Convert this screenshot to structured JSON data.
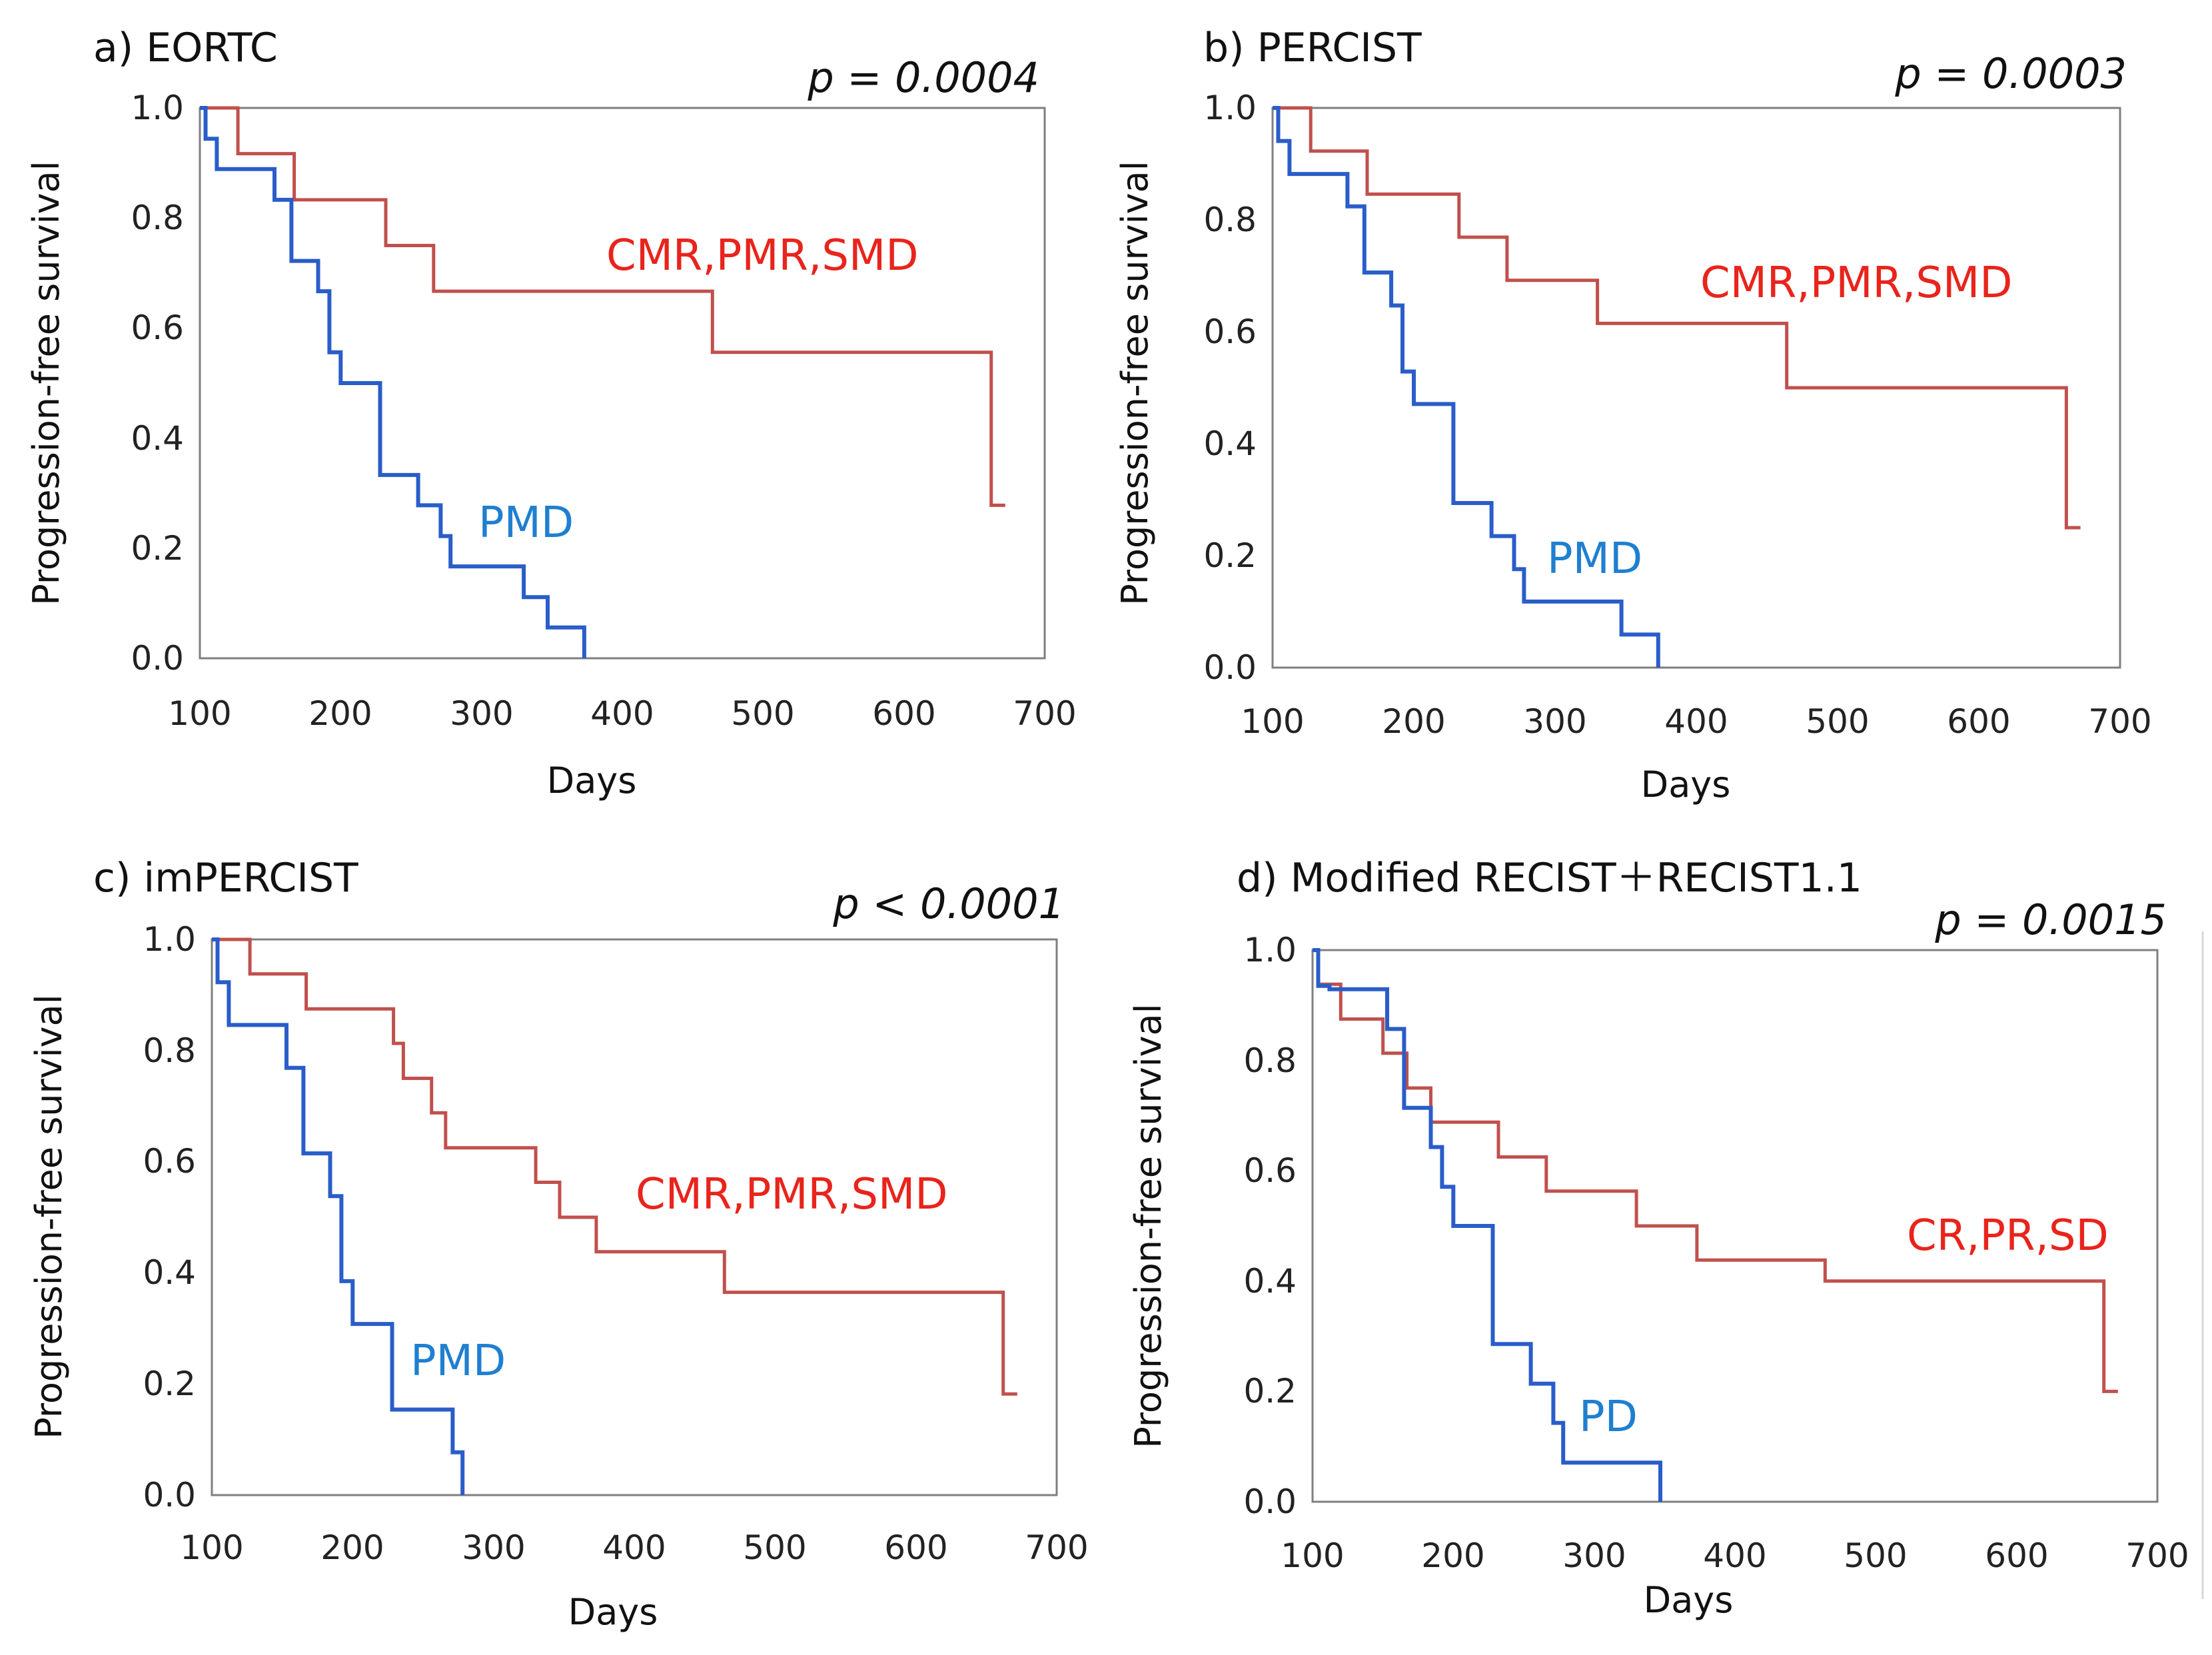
{
  "colors": {
    "red": "#c0504d",
    "blue": "#2a5dc9",
    "red_label": "#e8241c",
    "blue_label": "#1f7fd0",
    "frame": "#7f7f7f"
  },
  "axis_labels": {
    "y": "Progression-free  survival",
    "x": "Days"
  },
  "chart_data": [
    {
      "type": "line",
      "step": "post",
      "panel": "a) EORTC",
      "pvalue": "p = 0.0004",
      "xlabel": "Days",
      "ylabel": "Progression-free  survival",
      "xlim": [
        100,
        700
      ],
      "ylim": [
        0,
        1
      ],
      "xticks": [
        100,
        200,
        300,
        400,
        500,
        600,
        700
      ],
      "xtick_labels": [
        "100",
        "200",
        "300",
        "400",
        "500",
        "600",
        "700"
      ],
      "yticks": [
        0,
        0.2,
        0.4,
        0.6,
        0.8,
        1.0
      ],
      "ytick_labels": [
        "0.0",
        "0.2",
        "0.4",
        "0.6",
        "0.8",
        "1.0"
      ],
      "series": [
        {
          "name": "CMR,PMR,SMD",
          "color": "#c0504d",
          "x": [
            100,
            127,
            167,
            232,
            266,
            464,
            662,
            672
          ],
          "y": [
            1.0,
            0.917,
            0.833,
            0.75,
            0.667,
            0.556,
            0.278,
            0.278
          ]
        },
        {
          "name": "PMD",
          "color": "#2a5dc9",
          "x": [
            100,
            104,
            112,
            153,
            165,
            184,
            192,
            200,
            228,
            255,
            271,
            278,
            330,
            347,
            373
          ],
          "y": [
            1.0,
            0.944,
            0.889,
            0.833,
            0.722,
            0.667,
            0.556,
            0.5,
            0.333,
            0.278,
            0.222,
            0.167,
            0.111,
            0.056,
            0.0
          ]
        }
      ],
      "series_labels": [
        "CMR,PMR,SMD",
        "PMD"
      ]
    },
    {
      "type": "line",
      "step": "post",
      "panel": "b) PERCIST",
      "pvalue": "p = 0.0003",
      "xlabel": "Days",
      "ylabel": "Progression-free  survival",
      "xlim": [
        100,
        700
      ],
      "ylim": [
        0,
        1
      ],
      "xticks": [
        100,
        200,
        300,
        400,
        500,
        600,
        700
      ],
      "xtick_labels": [
        "100",
        "200",
        "300",
        "400",
        "500",
        "600",
        "700"
      ],
      "yticks": [
        0,
        0.2,
        0.4,
        0.6,
        0.8,
        1.0
      ],
      "ytick_labels": [
        "0.0",
        "0.2",
        "0.4",
        "0.6",
        "0.8",
        "1.0"
      ],
      "series": [
        {
          "name": "CMR,PMR,SMD",
          "color": "#c0504d",
          "x": [
            100,
            127,
            167,
            232,
            266,
            330,
            464,
            662,
            672
          ],
          "y": [
            1.0,
            0.923,
            0.846,
            0.769,
            0.692,
            0.615,
            0.5,
            0.25,
            0.25
          ]
        },
        {
          "name": "PMD",
          "color": "#2a5dc9",
          "x": [
            100,
            104,
            112,
            153,
            165,
            184,
            192,
            200,
            228,
            255,
            271,
            278,
            347,
            373
          ],
          "y": [
            1.0,
            0.941,
            0.882,
            0.824,
            0.706,
            0.647,
            0.529,
            0.471,
            0.294,
            0.235,
            0.176,
            0.118,
            0.059,
            0.0
          ]
        }
      ],
      "series_labels": [
        "CMR,PMR,SMD",
        "PMD"
      ]
    },
    {
      "type": "line",
      "step": "post",
      "panel": "c) imPERCIST",
      "pvalue": "p < 0.0001",
      "xlabel": "Days",
      "ylabel": "Progression-free  survival",
      "xlim": [
        100,
        700
      ],
      "ylim": [
        0,
        1
      ],
      "xticks": [
        100,
        200,
        300,
        400,
        500,
        600,
        700
      ],
      "xtick_labels": [
        "100",
        "200",
        "300",
        "400",
        "500",
        "600",
        "700"
      ],
      "yticks": [
        0,
        0.2,
        0.4,
        0.6,
        0.8,
        1.0
      ],
      "ytick_labels": [
        "0.0",
        "0.2",
        "0.4",
        "0.6",
        "0.8",
        "1.0"
      ],
      "series": [
        {
          "name": "CMR,PMR,SMD",
          "color": "#c0504d",
          "x": [
            100,
            127,
            167,
            229,
            236,
            256,
            266,
            330,
            347,
            373,
            464,
            662,
            672
          ],
          "y": [
            1.0,
            0.938,
            0.875,
            0.813,
            0.75,
            0.688,
            0.625,
            0.563,
            0.5,
            0.438,
            0.365,
            0.182,
            0.182
          ]
        },
        {
          "name": "PMD",
          "color": "#2a5dc9",
          "x": [
            100,
            104,
            112,
            153,
            165,
            184,
            192,
            200,
            228,
            271,
            278
          ],
          "y": [
            1.0,
            0.923,
            0.846,
            0.769,
            0.615,
            0.538,
            0.385,
            0.308,
            0.154,
            0.077,
            0.0
          ]
        }
      ],
      "series_labels": [
        "CMR,PMR,SMD",
        "PMD"
      ]
    },
    {
      "type": "line",
      "step": "post",
      "panel": "d) Modified RECIST＋RECIST1.1",
      "pvalue": "p = 0.0015",
      "xlabel": "Days",
      "ylabel": "Progression-free  survival",
      "xlim": [
        100,
        700
      ],
      "ylim": [
        0,
        1
      ],
      "xticks": [
        100,
        200,
        300,
        400,
        500,
        600,
        700
      ],
      "xtick_labels": [
        "100",
        "200",
        "300",
        "400",
        "500",
        "600",
        "700"
      ],
      "yticks": [
        0,
        0.2,
        0.4,
        0.6,
        0.8,
        1.0
      ],
      "ytick_labels": [
        "0.0",
        "0.2",
        "0.4",
        "0.6",
        "0.8",
        "1.0"
      ],
      "series": [
        {
          "name": "CR,PR,SD",
          "color": "#c0504d",
          "x": [
            100,
            104,
            120,
            150,
            167,
            184,
            232,
            266,
            330,
            373,
            464,
            662,
            672
          ],
          "y": [
            1.0,
            0.938,
            0.875,
            0.813,
            0.75,
            0.688,
            0.625,
            0.563,
            0.5,
            0.438,
            0.4,
            0.2,
            0.2
          ]
        },
        {
          "name": "PD",
          "color": "#2a5dc9",
          "x": [
            100,
            104,
            112,
            153,
            165,
            184,
            192,
            200,
            228,
            255,
            271,
            278,
            347
          ],
          "y": [
            1.0,
            0.935,
            0.929,
            0.857,
            0.714,
            0.643,
            0.571,
            0.5,
            0.286,
            0.214,
            0.143,
            0.071,
            0.0
          ]
        }
      ],
      "series_labels": [
        "CR,PR,SD",
        "PD"
      ]
    }
  ]
}
